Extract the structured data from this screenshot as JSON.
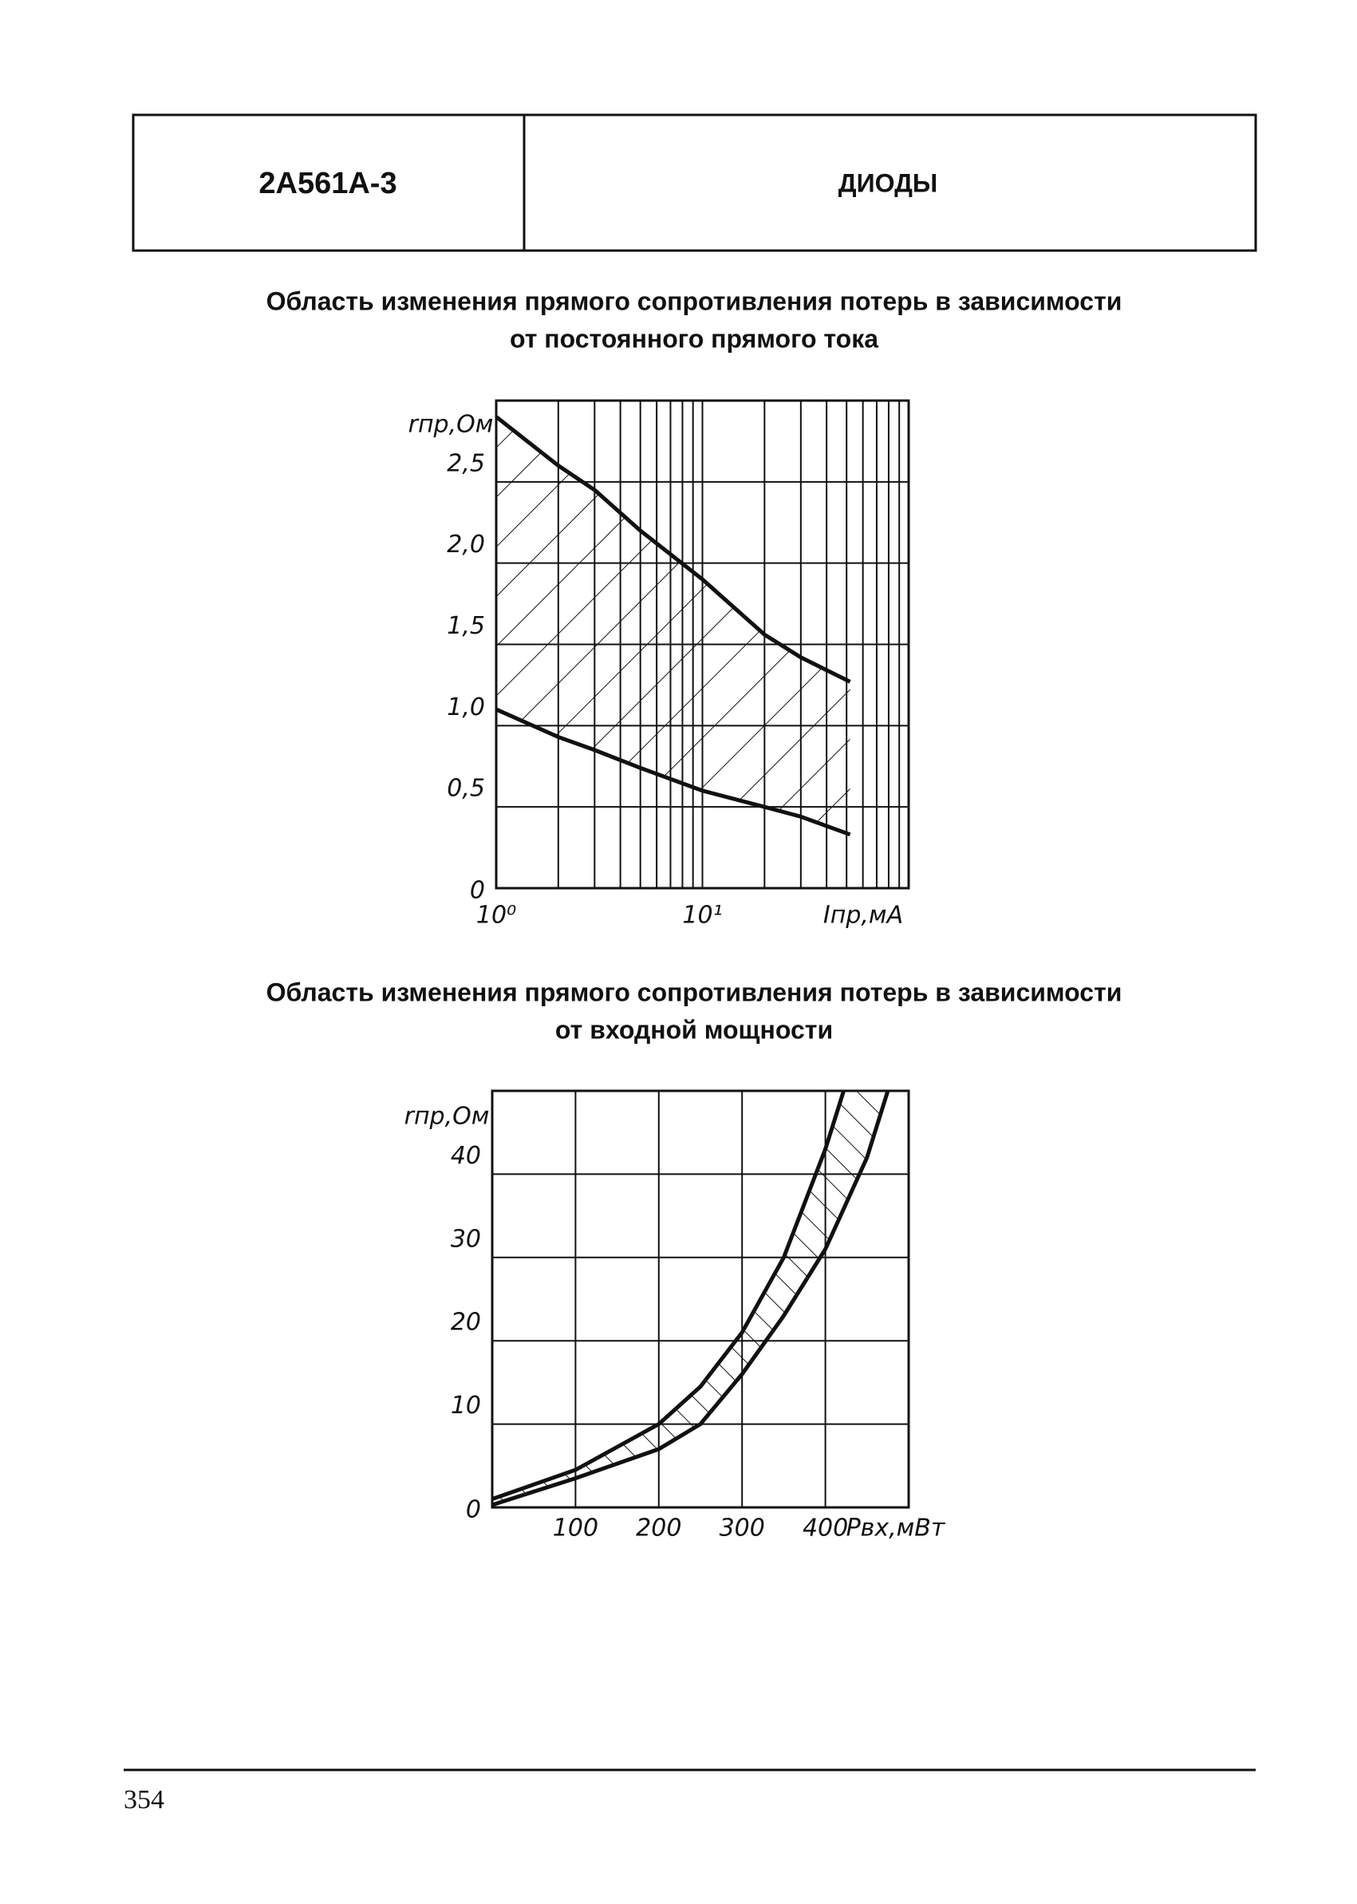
{
  "header": {
    "code": "2А561А-3",
    "category": "ДИОДЫ"
  },
  "chart_data": [
    {
      "type": "line",
      "title": [
        "Область изменения прямого сопротивления потерь в зависимости",
        "от постоянного прямого тока"
      ],
      "x_label": "Iпр,мА",
      "y_label": "rпр,Ом",
      "xscale": "log",
      "hatch": "forward",
      "xlim": [
        1,
        100
      ],
      "ylim": [
        0,
        3
      ],
      "xticks": [
        {
          "value": 1,
          "label": "10⁰"
        },
        {
          "value": 10,
          "label": "10¹"
        }
      ],
      "xgrid": [
        2,
        3,
        4,
        5,
        6,
        7,
        8,
        9,
        10,
        20,
        30,
        40,
        50,
        60,
        70,
        80,
        90
      ],
      "yticks": [
        0,
        {
          "value": 0.5,
          "label": "0,5"
        },
        {
          "value": 1.0,
          "label": "1,0"
        },
        {
          "value": 1.5,
          "label": "1,5"
        },
        {
          "value": 2.0,
          "label": "2,0"
        },
        {
          "value": 2.5,
          "label": "2,5"
        }
      ],
      "series": [
        {
          "color": "#111111",
          "x": [
            1,
            2,
            3,
            5,
            10,
            20,
            30,
            52
          ],
          "values": [
            2.9,
            2.6,
            2.45,
            2.2,
            1.9,
            1.56,
            1.42,
            1.27
          ]
        },
        {
          "color": "#111111",
          "x": [
            1,
            2,
            3,
            5,
            10,
            20,
            30,
            52
          ],
          "values": [
            1.1,
            0.93,
            0.85,
            0.74,
            0.6,
            0.5,
            0.44,
            0.33
          ]
        }
      ]
    },
    {
      "type": "line",
      "title": [
        "Область изменения прямого сопротивления потерь в зависимости",
        "от входной мощности"
      ],
      "x_label": "Pвх,мВт",
      "y_label": "rпр,Ом",
      "xscale": "linear",
      "hatch": "backward",
      "xlim": [
        0,
        500
      ],
      "ylim": [
        0,
        50
      ],
      "xticks": [
        100,
        200,
        300,
        400
      ],
      "yticks": [
        0,
        10,
        20,
        30,
        40
      ],
      "series": [
        {
          "color": "#111111",
          "x": [
            0,
            100,
            200,
            250,
            300,
            350,
            400,
            422
          ],
          "values": [
            1,
            4.5,
            10,
            14.5,
            21,
            30,
            43,
            50
          ]
        },
        {
          "color": "#111111",
          "x": [
            0,
            100,
            200,
            250,
            300,
            350,
            400,
            450,
            475
          ],
          "values": [
            0.3,
            3.5,
            7,
            10,
            16,
            23,
            31,
            42,
            50
          ]
        }
      ]
    }
  ],
  "page_number": "354"
}
